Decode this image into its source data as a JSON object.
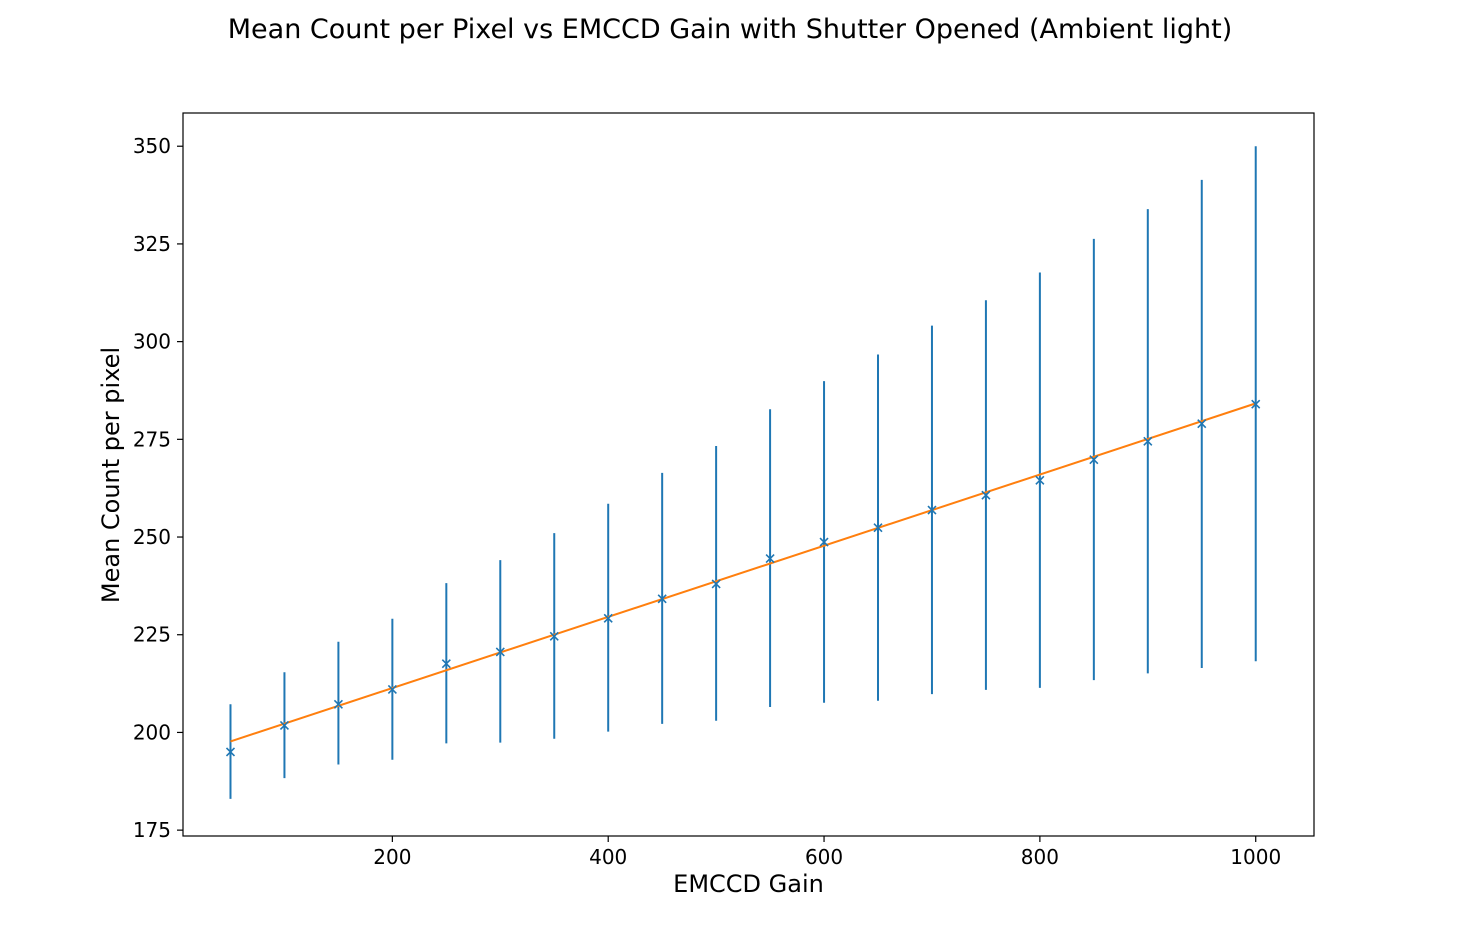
{
  "chart_data": {
    "type": "scatter",
    "title": "Mean Count per Pixel vs EMCCD Gain with Shutter Opened (Ambient light)",
    "xlabel": "EMCCD Gain",
    "ylabel": "Mean Count per pixel",
    "xlim": [
      6,
      1054
    ],
    "ylim": [
      173.5,
      358.5
    ],
    "xticks": [
      200,
      400,
      600,
      800,
      1000
    ],
    "yticks": [
      175,
      200,
      225,
      250,
      275,
      300,
      325,
      350
    ],
    "grid": false,
    "series": [
      {
        "kind": "errorbar",
        "marker": "x",
        "color": "#1f77b4",
        "x": [
          50,
          100,
          150,
          200,
          250,
          300,
          350,
          400,
          450,
          500,
          550,
          600,
          650,
          700,
          750,
          800,
          850,
          900,
          950,
          1000
        ],
        "y": [
          195.0,
          201.8,
          207.2,
          211.0,
          217.6,
          220.6,
          224.6,
          229.2,
          234.2,
          238.0,
          244.5,
          248.7,
          252.4,
          256.9,
          260.7,
          264.5,
          269.8,
          274.5,
          279.0,
          284.0
        ],
        "yerr_low": [
          183.0,
          188.3,
          191.8,
          193.0,
          197.2,
          197.4,
          198.4,
          200.2,
          202.2,
          203.0,
          206.5,
          207.6,
          208.1,
          209.8,
          210.9,
          211.4,
          213.4,
          215.1,
          216.5,
          218.2
        ],
        "yerr_high": [
          207.2,
          215.4,
          223.2,
          229.1,
          238.2,
          244.1,
          251.0,
          258.5,
          266.4,
          273.3,
          282.7,
          289.9,
          296.7,
          304.1,
          310.6,
          317.7,
          326.3,
          333.9,
          341.4,
          350.0
        ]
      },
      {
        "kind": "line",
        "color": "#ff7f0e",
        "x": [
          50,
          1000
        ],
        "y": [
          197.7,
          284.2
        ]
      }
    ]
  }
}
